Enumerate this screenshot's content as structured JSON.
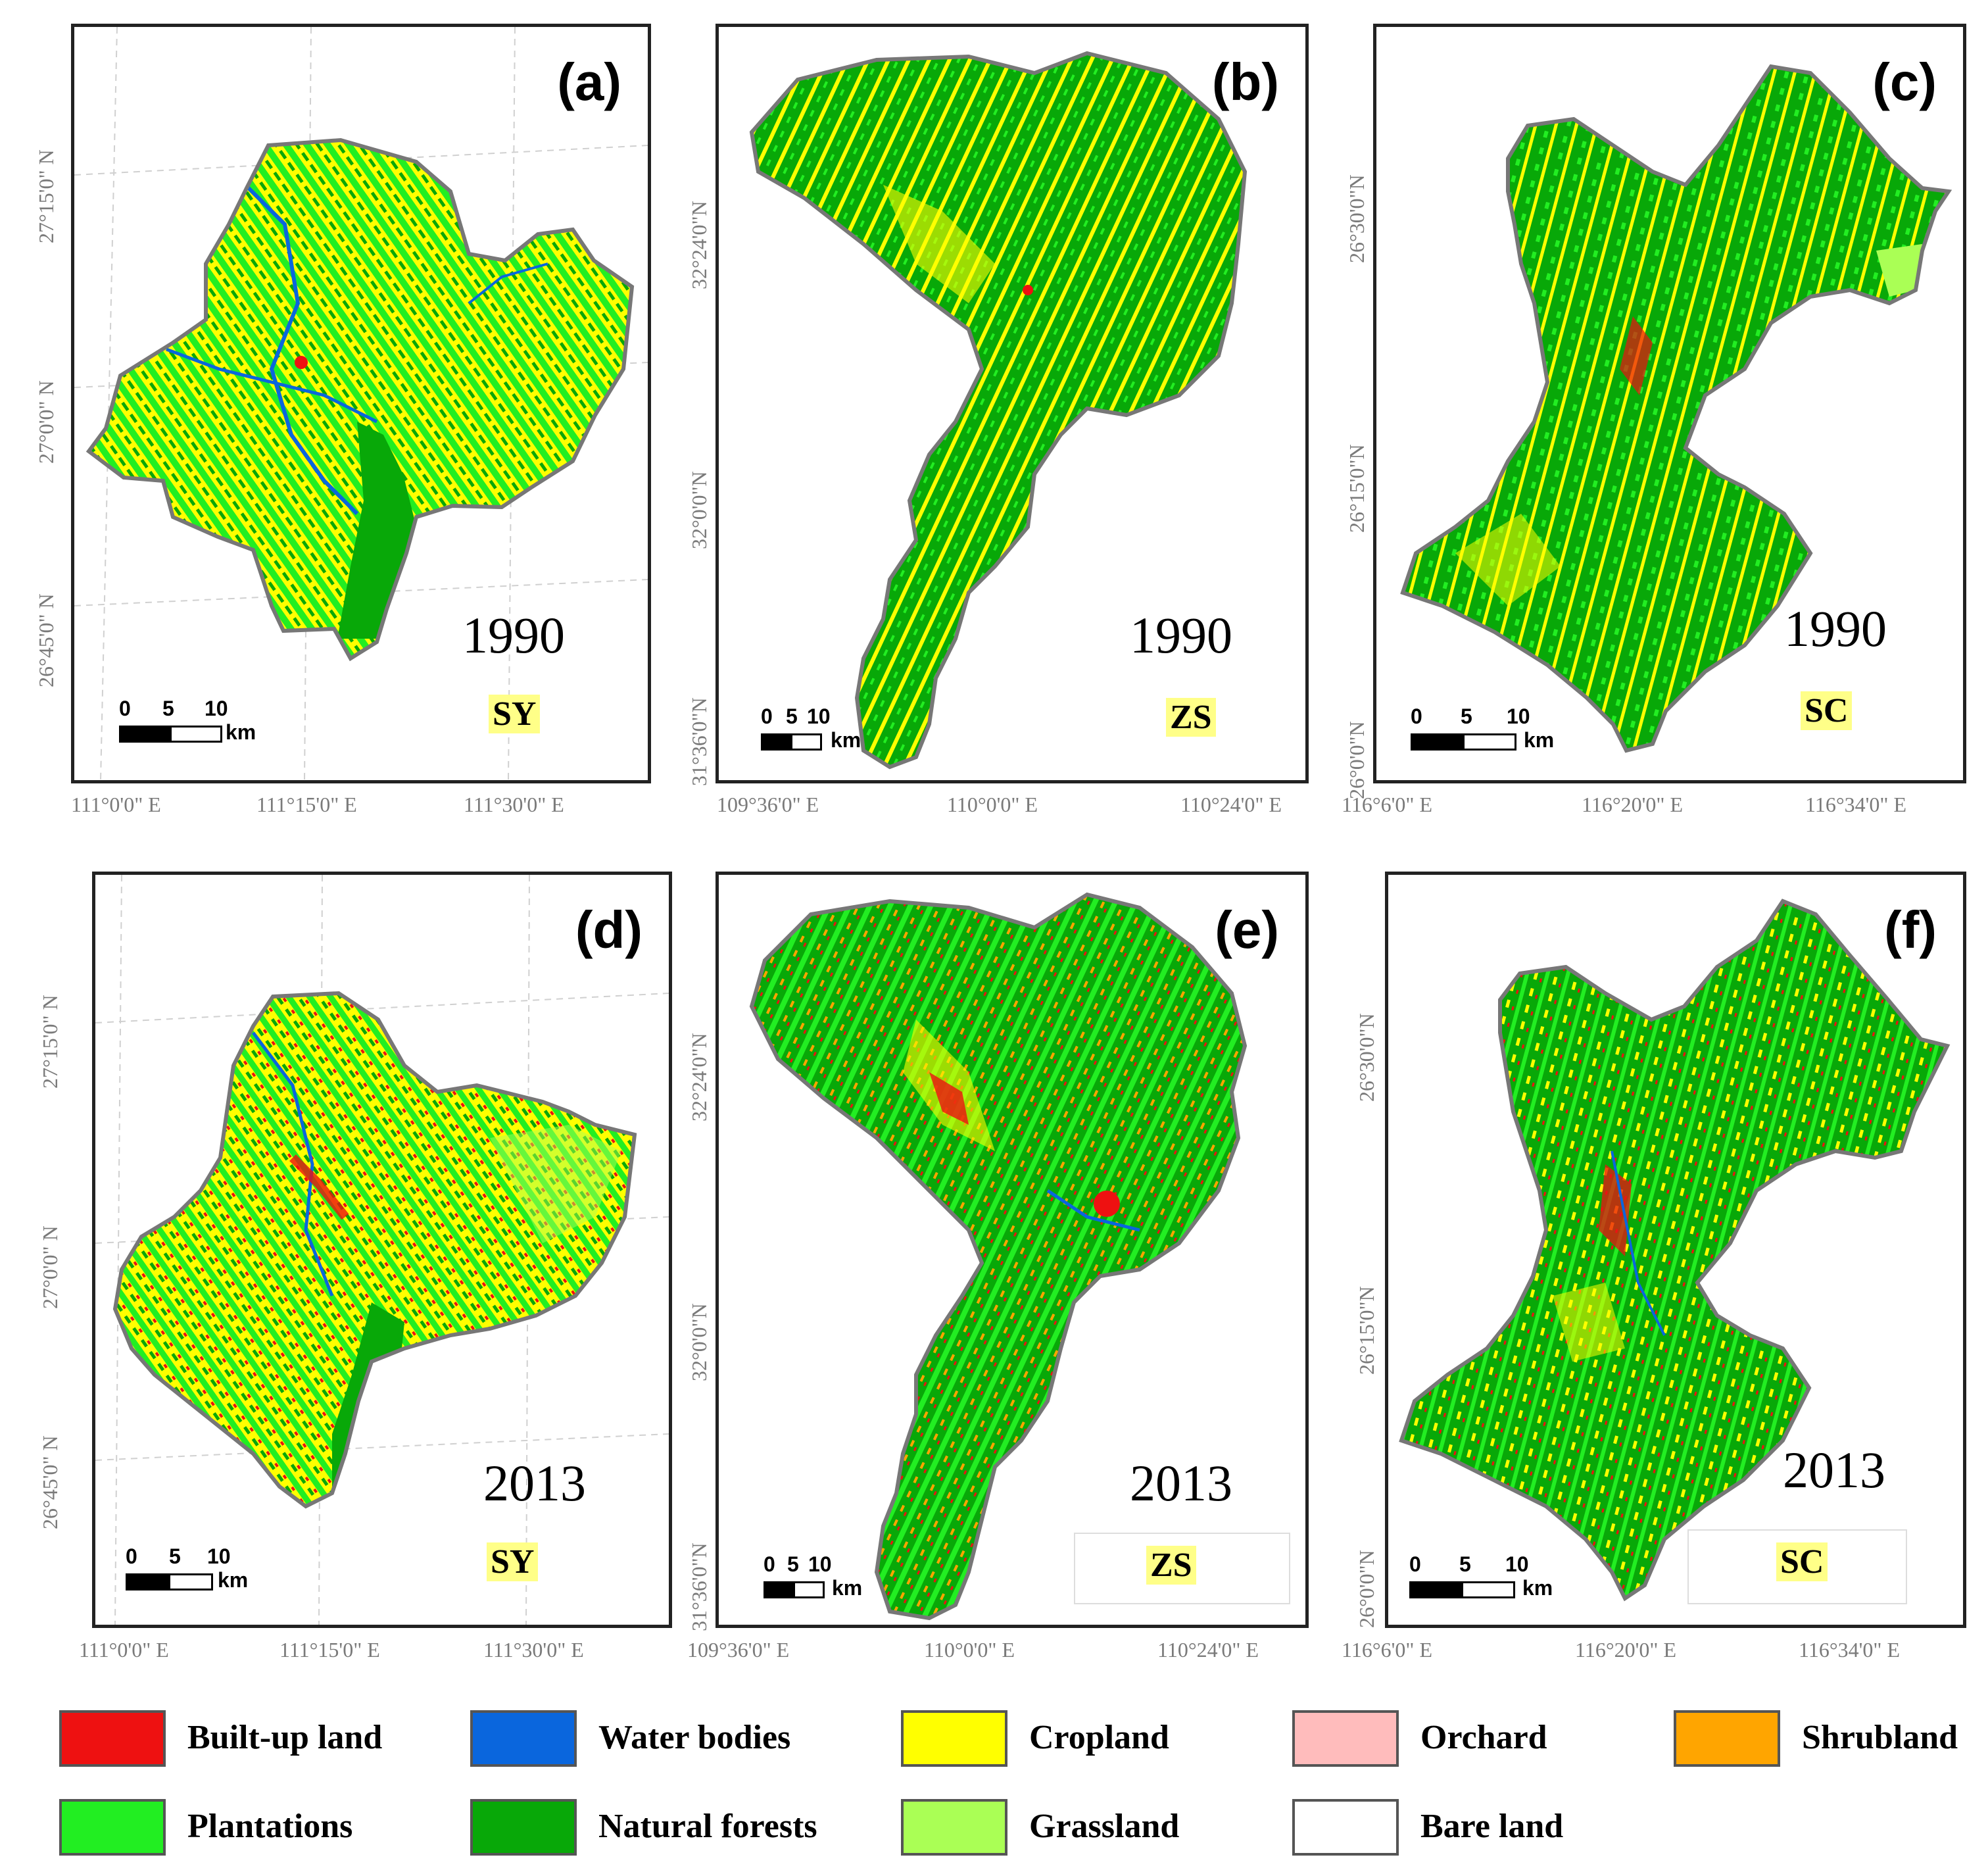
{
  "colors": {
    "built_up": "#ee1111",
    "water": "#0a66dd",
    "cropland": "#ffff00",
    "orchard": "#ffbcbc",
    "shrubland": "#ffa500",
    "plantations": "#22ee22",
    "natural_forests": "#08a808",
    "grassland": "#aaff55",
    "bare_land": "#ffffff",
    "outline": "#777777"
  },
  "panels": [
    {
      "id": "a",
      "label": "(a)",
      "year": "1990",
      "region": "SY",
      "lon_ticks": [
        "111°0'0\"  E",
        "111°15'0\"  E",
        "111°30'0\"  E"
      ],
      "lat_ticks": [
        "27°15'0\" N",
        "27°0'0\" N",
        "26°45'0\" N"
      ]
    },
    {
      "id": "b",
      "label": "(b)",
      "year": "1990",
      "region": "ZS",
      "lon_ticks": [
        "109°36'0\"  E",
        "110°0'0\"  E",
        "110°24'0\"  E"
      ],
      "lat_ticks": [
        "32°24'0\"N",
        "32°0'0\"N",
        "31°36'0\"N"
      ]
    },
    {
      "id": "c",
      "label": "(c)",
      "year": "1990",
      "region": "SC",
      "lon_ticks": [
        "116°6'0\"  E",
        "116°20'0\"  E",
        "116°34'0\"  E"
      ],
      "lat_ticks": [
        "26°30'0\"N",
        "26°15'0\"N",
        "26°0'0\"N"
      ]
    },
    {
      "id": "d",
      "label": "(d)",
      "year": "2013",
      "region": "SY",
      "lon_ticks": [
        "111°0'0\"  E",
        "111°15'0\"  E",
        "111°30'0\"  E"
      ],
      "lat_ticks": [
        "27°15'0\" N",
        "27°0'0\" N",
        "26°45'0\" N"
      ]
    },
    {
      "id": "e",
      "label": "(e)",
      "year": "2013",
      "region": "ZS",
      "lon_ticks": [
        "109°36'0\"  E",
        "110°0'0\"  E",
        "110°24'0\"  E"
      ],
      "lat_ticks": [
        "32°24'0\"N",
        "32°0'0\"N",
        "31°36'0\"N"
      ]
    },
    {
      "id": "f",
      "label": "(f)",
      "year": "2013",
      "region": "SC",
      "lon_ticks": [
        "116°6'0\"  E",
        "116°20'0\"  E",
        "116°34'0\"  E"
      ],
      "lat_ticks": [
        "26°30'0\"N",
        "26°15'0\"N",
        "26°0'0\"N"
      ]
    }
  ],
  "scalebar": {
    "ticks": [
      "0",
      "5",
      "10"
    ],
    "unit": "km"
  },
  "legend": [
    {
      "label": "Built-up land",
      "color": "#ee1111"
    },
    {
      "label": "Water bodies",
      "color": "#0a66dd"
    },
    {
      "label": "Cropland",
      "color": "#ffff00"
    },
    {
      "label": "Orchard",
      "color": "#ffbcbc"
    },
    {
      "label": "Shrubland",
      "color": "#ffa500"
    },
    {
      "label": "Plantations",
      "color": "#22ee22"
    },
    {
      "label": "Natural forests",
      "color": "#08a808"
    },
    {
      "label": "Grassland",
      "color": "#aaff55"
    },
    {
      "label": "Bare land",
      "color": "#ffffff"
    }
  ]
}
